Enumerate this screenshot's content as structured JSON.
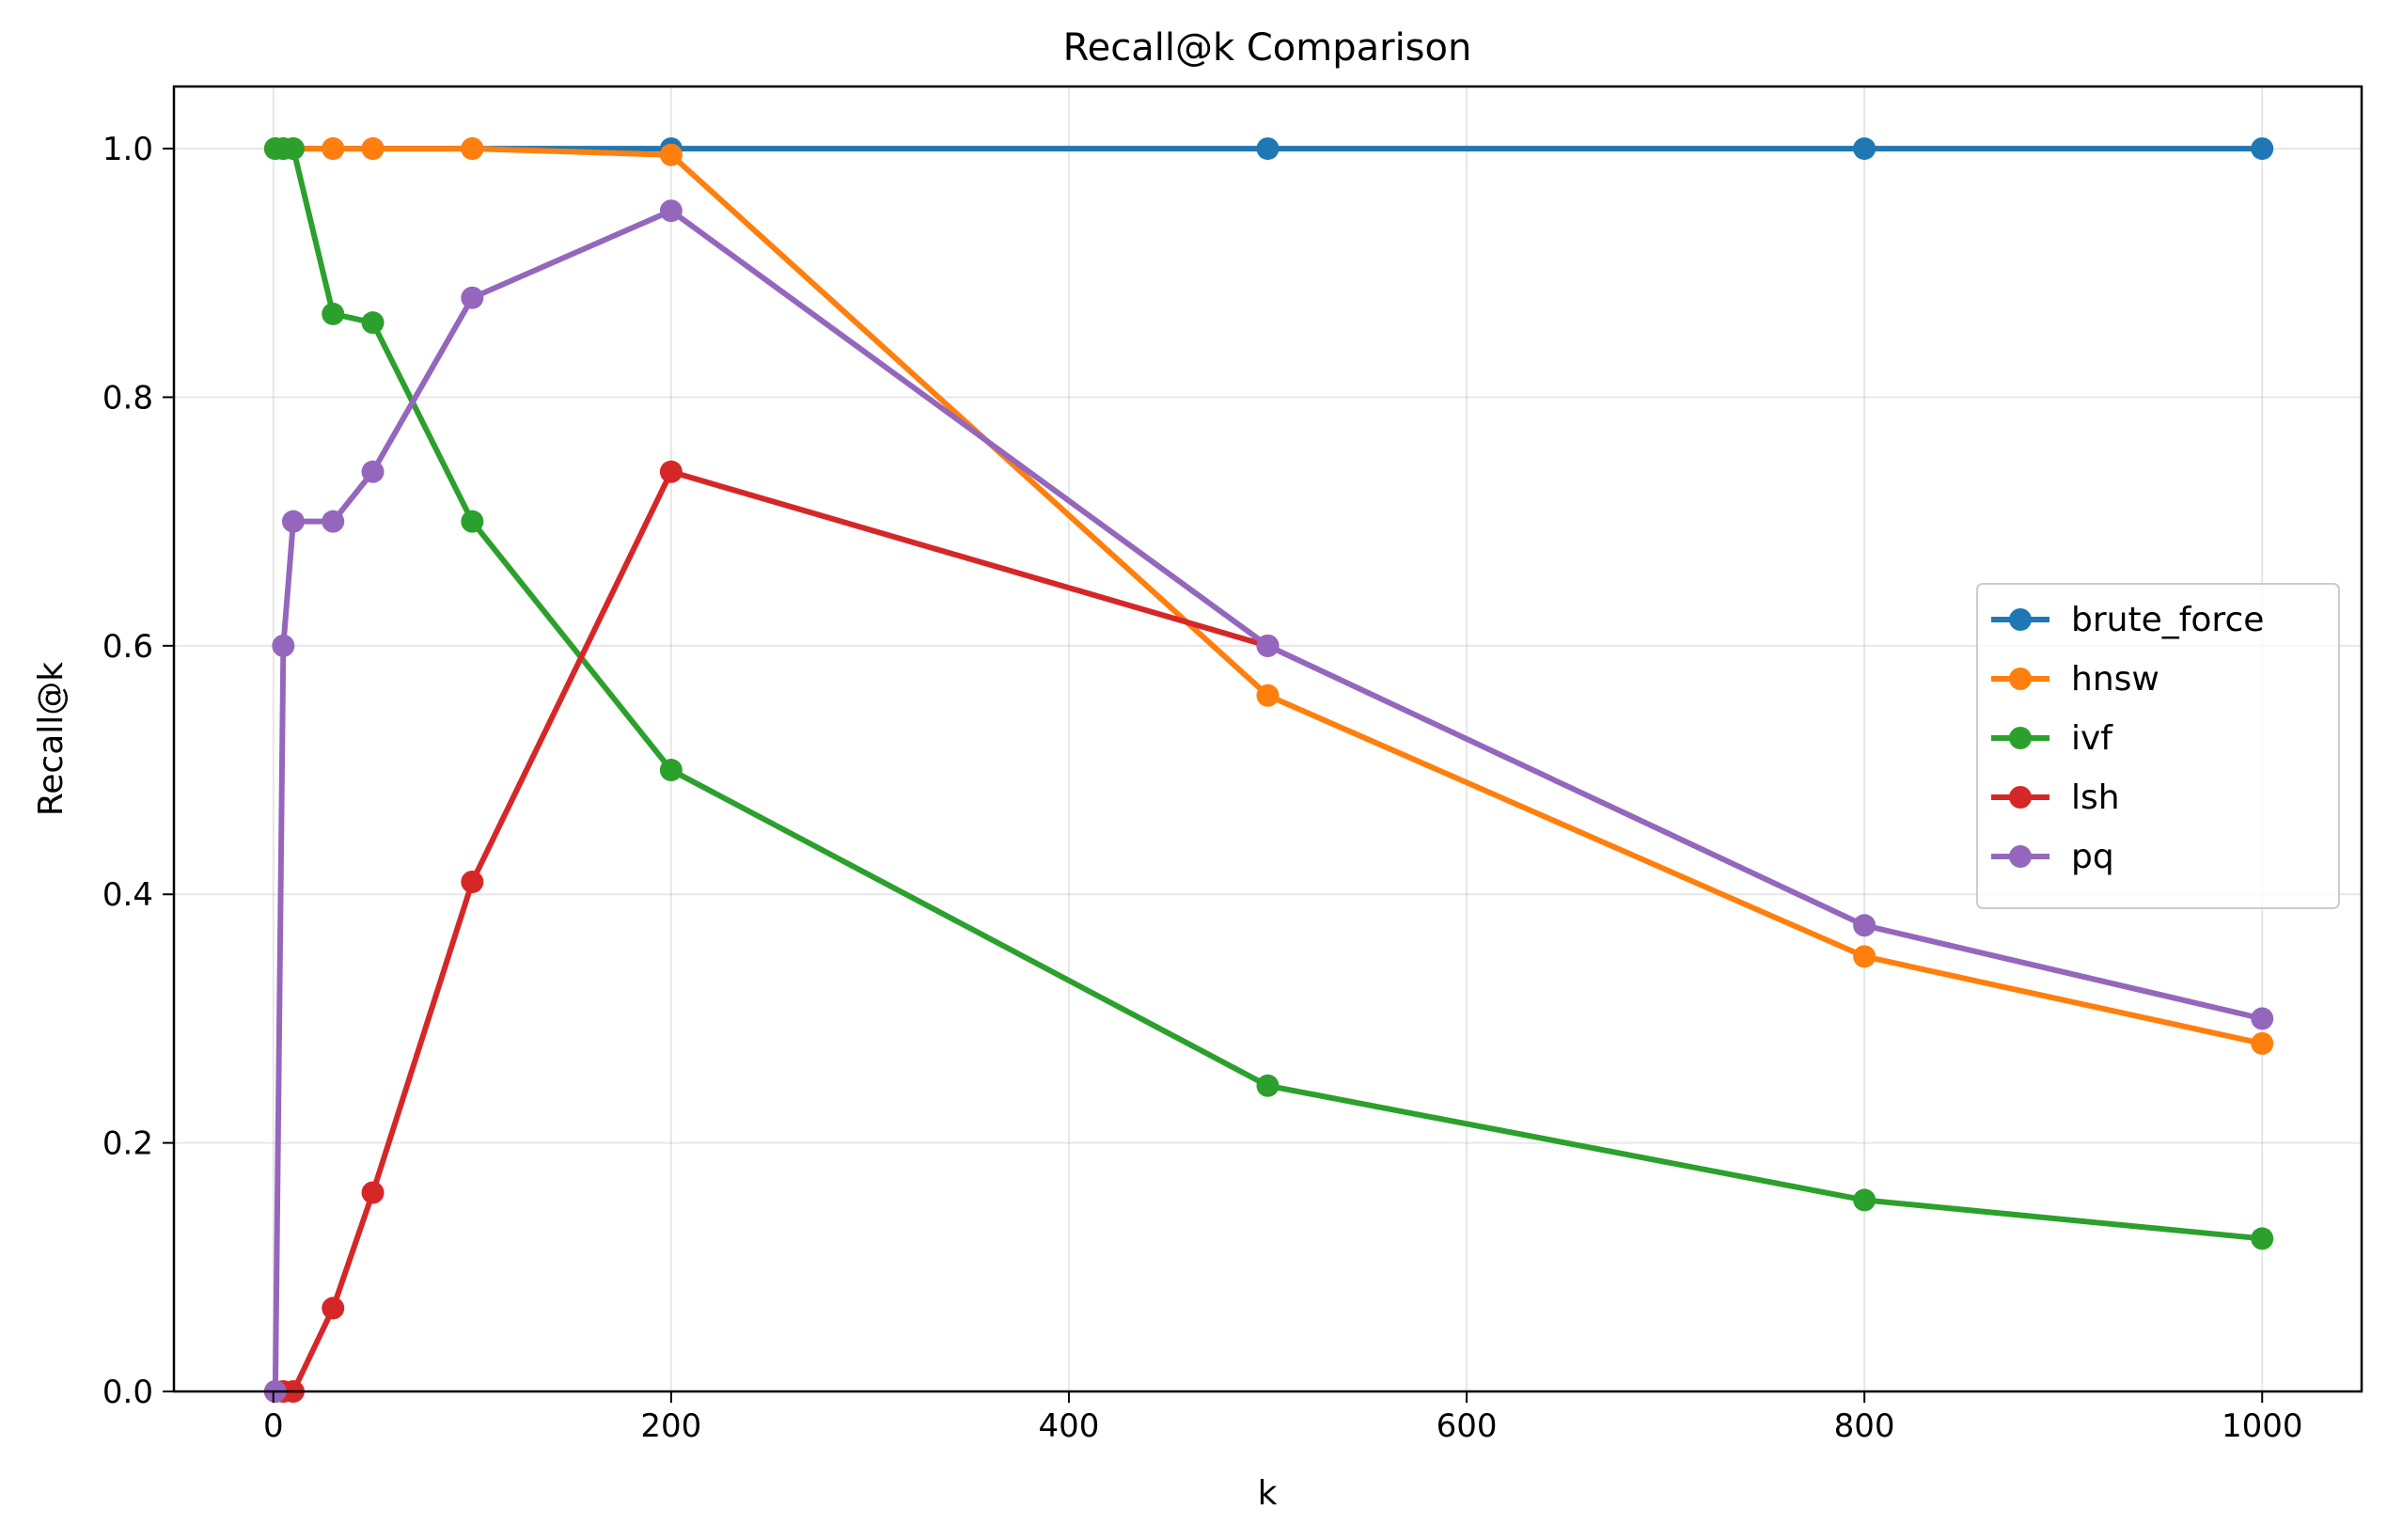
{
  "chart_data": {
    "type": "line",
    "title": "Recall@k Comparison",
    "xlabel": "k",
    "ylabel": "Recall@k",
    "xlim": [
      -50,
      1050
    ],
    "ylim": [
      0.0,
      1.05
    ],
    "xticks": [
      0,
      200,
      400,
      600,
      800,
      1000
    ],
    "xtick_labels": [
      "0",
      "200",
      "400",
      "600",
      "800",
      "1000"
    ],
    "yticks": [
      0.0,
      0.2,
      0.4,
      0.6,
      0.8,
      1.0
    ],
    "ytick_labels": [
      "0.0",
      "0.2",
      "0.4",
      "0.6",
      "0.8",
      "1.0"
    ],
    "grid": true,
    "legend_position": "center-right",
    "series": [
      {
        "name": "brute_force",
        "color": "#1f77b4",
        "x": [
          1,
          5,
          10,
          30,
          50,
          100,
          200,
          500,
          800,
          1000
        ],
        "y": [
          1.0,
          1.0,
          1.0,
          1.0,
          1.0,
          1.0,
          1.0,
          1.0,
          1.0,
          1.0
        ]
      },
      {
        "name": "hnsw",
        "color": "#ff7f0e",
        "x": [
          1,
          5,
          10,
          30,
          50,
          100,
          200,
          500,
          800,
          1000
        ],
        "y": [
          1.0,
          1.0,
          1.0,
          1.0,
          1.0,
          1.0,
          0.995,
          0.56,
          0.35,
          0.28
        ]
      },
      {
        "name": "ivf",
        "color": "#2ca02c",
        "x": [
          1,
          5,
          10,
          30,
          50,
          100,
          200,
          500,
          800,
          1000
        ],
        "y": [
          1.0,
          1.0,
          1.0,
          0.867,
          0.86,
          0.7,
          0.5,
          0.246,
          0.154,
          0.123
        ]
      },
      {
        "name": "lsh",
        "color": "#d62728",
        "x": [
          1,
          5,
          10,
          30,
          50,
          100,
          200,
          500
        ],
        "y": [
          0.0,
          0.0,
          0.0,
          0.067,
          0.16,
          0.41,
          0.74,
          0.6
        ]
      },
      {
        "name": "pq",
        "color": "#9467bd",
        "x": [
          1,
          5,
          10,
          30,
          50,
          100,
          200,
          500,
          800,
          1000
        ],
        "y": [
          0.0,
          0.6,
          0.7,
          0.7,
          0.74,
          0.88,
          0.95,
          0.6,
          0.375,
          0.3
        ]
      }
    ]
  }
}
